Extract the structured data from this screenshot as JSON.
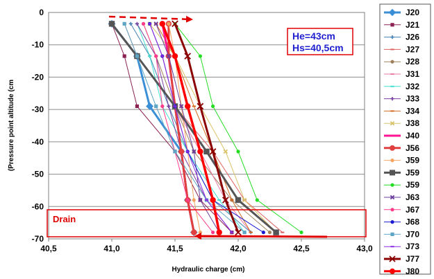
{
  "chart_data": {
    "type": "line",
    "title": "",
    "xlabel": "Hydraulic charge (cm)",
    "ylabel": "(Pressure point altitude (cm",
    "xlim": [
      40.5,
      43.0
    ],
    "ylim": [
      -70,
      0
    ],
    "x_ticks": [
      "40,5",
      "41,0",
      "41,5",
      "42,0",
      "42,5",
      "43,0"
    ],
    "y_ticks": [
      "0",
      "-10",
      "-20",
      "-30",
      "-40",
      "-50",
      "-60",
      "-70"
    ],
    "grid": "horizontal",
    "legend_position": "right",
    "annotations": {
      "box_line1": "He=43cm",
      "box_line2": "Hs=40,5cm",
      "drain_label": "Drain",
      "drain_range": [
        -61,
        -69.5
      ]
    },
    "series": [
      {
        "name": "J20",
        "color": "#3a8fd6",
        "marker": "diamond",
        "x": [
          41.0,
          41.2,
          41.3,
          41.55,
          41.6,
          41.65
        ],
        "y": [
          -3.5,
          -13.5,
          -29,
          -43,
          -58,
          -68
        ]
      },
      {
        "name": "J21",
        "color": "#8b2252",
        "marker": "square",
        "x": [
          41.0,
          41.1,
          41.2,
          41.5,
          41.7,
          41.95
        ],
        "y": [
          -3.5,
          -13.5,
          -29,
          -43,
          -58,
          -68
        ]
      },
      {
        "name": "J26",
        "color": "#4682b4",
        "marker": "plus",
        "x": [
          41.15,
          41.3,
          41.45,
          41.6,
          41.8,
          42.1
        ],
        "y": [
          -3.5,
          -13.5,
          -29,
          -43,
          -58,
          -68
        ]
      },
      {
        "name": "J27",
        "color": "#e06060",
        "marker": "dash",
        "x": [
          41.1,
          41.2,
          41.5,
          41.8,
          42.05,
          42.35
        ],
        "y": [
          -3.5,
          -13.5,
          -29,
          -43,
          -58,
          -68
        ]
      },
      {
        "name": "J28",
        "color": "#a0805a",
        "marker": "circle",
        "x": [
          41.25,
          41.35,
          41.5,
          41.65,
          41.95,
          42.25
        ],
        "y": [
          -3.5,
          -13.5,
          -29,
          -43,
          -58,
          -68
        ]
      },
      {
        "name": "J31",
        "color": "#e87aa5",
        "marker": "dash",
        "x": [
          41.3,
          41.4,
          41.5,
          41.7,
          41.9,
          42.1
        ],
        "y": [
          -3.5,
          -13.5,
          -29,
          -43,
          -58,
          -68
        ]
      },
      {
        "name": "J32",
        "color": "#40e0d0",
        "marker": "dash",
        "x": [
          41.2,
          41.3,
          41.4,
          41.6,
          41.85,
          42.05
        ],
        "y": [
          -3.5,
          -13.5,
          -29,
          -43,
          -58,
          -68
        ]
      },
      {
        "name": "J33",
        "color": "#7a3fa0",
        "marker": "plus",
        "x": [
          41.2,
          41.35,
          41.45,
          41.55,
          41.75,
          41.95
        ],
        "y": [
          -3.5,
          -13.5,
          -29,
          -43,
          -58,
          -68
        ]
      },
      {
        "name": "J34",
        "color": "#d2691e",
        "marker": "dash",
        "x": [
          41.35,
          41.5,
          41.65,
          41.8,
          41.95,
          42.1
        ],
        "y": [
          -3.5,
          -13.5,
          -29,
          -43,
          -58,
          -68
        ]
      },
      {
        "name": "J38",
        "color": "#d9c36a",
        "marker": "cross",
        "x": [
          41.3,
          41.5,
          41.7,
          41.9,
          42.05,
          42.3
        ],
        "y": [
          -3.5,
          -13.5,
          -29,
          -43,
          -58,
          -68
        ]
      },
      {
        "name": "J40",
        "color": "#ff1493",
        "marker": "dash",
        "x": [
          41.4,
          41.45,
          41.5,
          41.55,
          41.6,
          41.65
        ],
        "y": [
          -3.5,
          -13.5,
          -29,
          -43,
          -58,
          -68
        ]
      },
      {
        "name": "J56",
        "color": "#e04040",
        "marker": "circle",
        "x": [
          41.45,
          41.45,
          41.5,
          41.55,
          41.6,
          41.65
        ],
        "y": [
          -3.5,
          -13.5,
          -29,
          -43,
          -58,
          -68
        ]
      },
      {
        "name": "J59",
        "color": "#f4a460",
        "marker": "circle",
        "x": [
          41.45,
          41.5,
          41.55,
          41.6,
          41.65,
          41.7
        ],
        "y": [
          -3.5,
          -13.5,
          -29,
          -43,
          -58,
          -68
        ]
      },
      {
        "name": "J59",
        "color": "#555555",
        "marker": "square",
        "x": [
          41.0,
          41.2,
          41.5,
          41.75,
          42.0,
          42.3
        ],
        "y": [
          -3.5,
          -13.5,
          -29,
          -43,
          -58,
          -68
        ]
      },
      {
        "name": "J59",
        "color": "#22dd22",
        "marker": "circle",
        "x": [
          41.5,
          41.7,
          41.8,
          42.0,
          42.15,
          42.5
        ],
        "y": [
          -3.5,
          -13.5,
          -29,
          -43,
          -58,
          -68
        ]
      },
      {
        "name": "J63",
        "color": "#6a3d9a",
        "marker": "cross",
        "x": [
          41.35,
          41.45,
          41.55,
          41.65,
          41.7,
          41.85
        ],
        "y": [
          -3.5,
          -13.5,
          -29,
          -43,
          -58,
          -68
        ]
      },
      {
        "name": "J67",
        "color": "#ff3c8a",
        "marker": "circle",
        "x": [
          41.25,
          41.35,
          41.4,
          41.5,
          41.6,
          41.8
        ],
        "y": [
          -3.5,
          -13.5,
          -29,
          -43,
          -58,
          -68
        ]
      },
      {
        "name": "J68",
        "color": "#1a1ad0",
        "marker": "circle",
        "x": [
          41.3,
          41.4,
          41.5,
          41.6,
          41.8,
          42.2
        ],
        "y": [
          -3.5,
          -13.5,
          -29,
          -43,
          -58,
          -68
        ]
      },
      {
        "name": "J70",
        "color": "#5fa6c6",
        "marker": "square",
        "x": [
          41.1,
          41.2,
          41.35,
          41.5,
          41.75,
          42.05
        ],
        "y": [
          -3.5,
          -13.5,
          -29,
          -43,
          -58,
          -68
        ]
      },
      {
        "name": "J73",
        "color": "#8a2be2",
        "marker": "dash",
        "x": [
          41.3,
          41.4,
          41.5,
          41.6,
          41.75,
          41.95
        ],
        "y": [
          -3.5,
          -13.5,
          -29,
          -43,
          -58,
          -68
        ]
      },
      {
        "name": "J77",
        "color": "#8b0000",
        "marker": "cross",
        "x": [
          41.5,
          41.6,
          41.7,
          41.8,
          41.9,
          42.0
        ],
        "y": [
          -3.5,
          -13.5,
          -29,
          -43,
          -58,
          -68
        ]
      },
      {
        "name": "J80",
        "color": "#ff0000",
        "marker": "circle",
        "x": [
          41.4,
          41.5,
          41.6,
          41.7,
          41.8,
          41.85
        ],
        "y": [
          -3.5,
          -13.5,
          -29,
          -43,
          -58,
          -68
        ]
      }
    ]
  }
}
